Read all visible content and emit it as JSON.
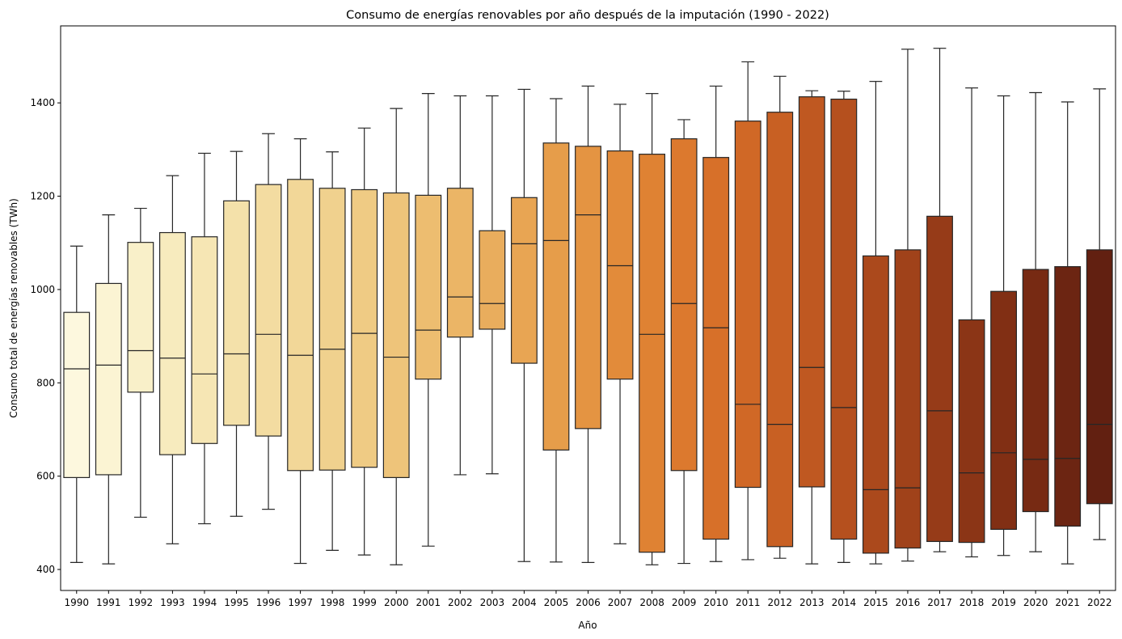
{
  "chart_data": {
    "type": "box",
    "title": "Consumo de energías renovables por año después de la imputación (1990 - 2022)",
    "xlabel": "Año",
    "ylabel": "Consumo total de energías renovables (TWh)",
    "ylim": [
      355,
      1565
    ],
    "yticks": [
      400,
      600,
      800,
      1000,
      1200,
      1400
    ],
    "grid": false,
    "palette": "YlOrBr",
    "colors": [
      "#fdf8de",
      "#fbf4d3",
      "#f9f0c9",
      "#f7ebbe",
      "#f6e6b4",
      "#f4e1aa",
      "#f3dca1",
      "#f2d798",
      "#f0d18e",
      "#efcb84",
      "#eec47a",
      "#edbd70",
      "#ebb566",
      "#e9ad5d",
      "#e8a553",
      "#e69d4a",
      "#e49442",
      "#e28b3a",
      "#df8233",
      "#dc792e",
      "#d77029",
      "#d06826",
      "#c86023",
      "#bf5821",
      "#b5501e",
      "#ab491c",
      "#a0421a",
      "#963b18",
      "#8b3516",
      "#812f14",
      "#772a13",
      "#6c2512",
      "#622011"
    ],
    "categories": [
      "1990",
      "1991",
      "1992",
      "1993",
      "1994",
      "1995",
      "1996",
      "1997",
      "1998",
      "1999",
      "2000",
      "2001",
      "2002",
      "2003",
      "2004",
      "2005",
      "2006",
      "2007",
      "2008",
      "2009",
      "2010",
      "2011",
      "2012",
      "2013",
      "2014",
      "2015",
      "2016",
      "2017",
      "2018",
      "2019",
      "2020",
      "2021",
      "2022"
    ],
    "boxes": [
      {
        "whislo": 415,
        "q1": 597,
        "med": 830,
        "q3": 951,
        "whishi": 1093
      },
      {
        "whislo": 412,
        "q1": 603,
        "med": 838,
        "q3": 1013,
        "whishi": 1160
      },
      {
        "whislo": 512,
        "q1": 780,
        "med": 869,
        "q3": 1101,
        "whishi": 1174
      },
      {
        "whislo": 455,
        "q1": 646,
        "med": 853,
        "q3": 1122,
        "whishi": 1244
      },
      {
        "whislo": 498,
        "q1": 670,
        "med": 819,
        "q3": 1113,
        "whishi": 1292
      },
      {
        "whislo": 514,
        "q1": 709,
        "med": 862,
        "q3": 1190,
        "whishi": 1296
      },
      {
        "whislo": 529,
        "q1": 686,
        "med": 904,
        "q3": 1225,
        "whishi": 1334
      },
      {
        "whislo": 413,
        "q1": 612,
        "med": 859,
        "q3": 1236,
        "whishi": 1323
      },
      {
        "whislo": 441,
        "q1": 613,
        "med": 872,
        "q3": 1217,
        "whishi": 1295
      },
      {
        "whislo": 431,
        "q1": 619,
        "med": 906,
        "q3": 1214,
        "whishi": 1346
      },
      {
        "whislo": 410,
        "q1": 597,
        "med": 855,
        "q3": 1207,
        "whishi": 1388
      },
      {
        "whislo": 450,
        "q1": 808,
        "med": 913,
        "q3": 1202,
        "whishi": 1420
      },
      {
        "whislo": 603,
        "q1": 898,
        "med": 984,
        "q3": 1217,
        "whishi": 1415
      },
      {
        "whislo": 605,
        "q1": 915,
        "med": 970,
        "q3": 1126,
        "whishi": 1415
      },
      {
        "whislo": 417,
        "q1": 842,
        "med": 1098,
        "q3": 1197,
        "whishi": 1429
      },
      {
        "whislo": 416,
        "q1": 656,
        "med": 1105,
        "q3": 1314,
        "whishi": 1409
      },
      {
        "whislo": 415,
        "q1": 702,
        "med": 1160,
        "q3": 1307,
        "whishi": 1436
      },
      {
        "whislo": 455,
        "q1": 808,
        "med": 1051,
        "q3": 1297,
        "whishi": 1397
      },
      {
        "whislo": 410,
        "q1": 437,
        "med": 904,
        "q3": 1290,
        "whishi": 1420
      },
      {
        "whislo": 413,
        "q1": 612,
        "med": 970,
        "q3": 1323,
        "whishi": 1364
      },
      {
        "whislo": 417,
        "q1": 465,
        "med": 918,
        "q3": 1283,
        "whishi": 1436
      },
      {
        "whislo": 421,
        "q1": 576,
        "med": 754,
        "q3": 1361,
        "whishi": 1488
      },
      {
        "whislo": 424,
        "q1": 449,
        "med": 711,
        "q3": 1380,
        "whishi": 1457
      },
      {
        "whislo": 412,
        "q1": 577,
        "med": 833,
        "q3": 1413,
        "whishi": 1426
      },
      {
        "whislo": 415,
        "q1": 465,
        "med": 747,
        "q3": 1408,
        "whishi": 1425
      },
      {
        "whislo": 412,
        "q1": 435,
        "med": 571,
        "q3": 1072,
        "whishi": 1446
      },
      {
        "whislo": 418,
        "q1": 446,
        "med": 575,
        "q3": 1085,
        "whishi": 1515
      },
      {
        "whislo": 438,
        "q1": 460,
        "med": 740,
        "q3": 1157,
        "whishi": 1517
      },
      {
        "whislo": 427,
        "q1": 458,
        "med": 607,
        "q3": 935,
        "whishi": 1432
      },
      {
        "whislo": 430,
        "q1": 486,
        "med": 650,
        "q3": 996,
        "whishi": 1415
      },
      {
        "whislo": 438,
        "q1": 524,
        "med": 636,
        "q3": 1043,
        "whishi": 1422
      },
      {
        "whislo": 412,
        "q1": 493,
        "med": 638,
        "q3": 1049,
        "whishi": 1402
      },
      {
        "whislo": 464,
        "q1": 541,
        "med": 711,
        "q3": 1085,
        "whishi": 1430
      }
    ]
  }
}
